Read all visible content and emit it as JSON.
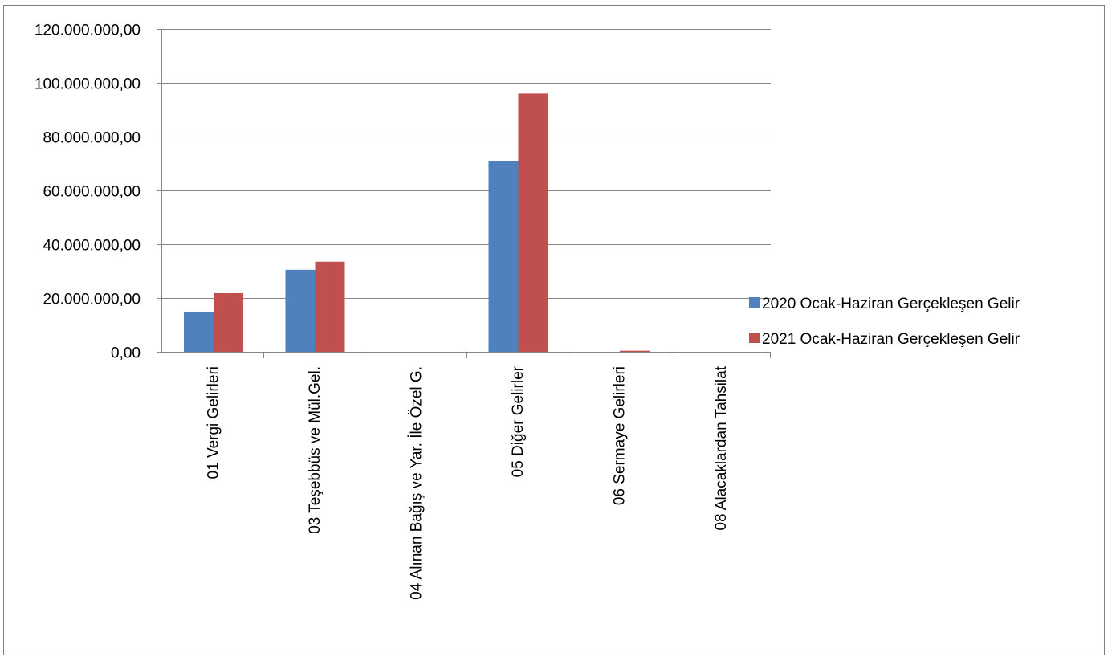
{
  "chart_data": {
    "type": "bar",
    "categories": [
      "01 Vergi Gelirleri",
      "03 Teşebbüs ve Mül.Gel.",
      "04 Alınan Bağış ve Yar. İle Özel G.",
      "05 Diğer Gelirler",
      "06 Sermaye Gelirleri",
      "08 Alacaklardan Tahsilat"
    ],
    "series": [
      {
        "name": "2020  Ocak-Haziran Gerçekleşen Gelir",
        "color": "#4f81bd",
        "values": [
          14800000,
          30500000,
          0,
          71000000,
          0,
          0
        ]
      },
      {
        "name": "2021  Ocak-Haziran Gerçekleşen Gelir",
        "color": "#c0504d",
        "values": [
          21800000,
          33500000,
          0,
          96000000,
          400000,
          0
        ]
      }
    ],
    "yticks": [
      "0,00",
      "20.000.000,00",
      "40.000.000,00",
      "60.000.000,00",
      "80.000.000,00",
      "100.000.000,00",
      "120.000.000,00"
    ],
    "ylim": [
      0,
      120000000
    ],
    "grid": true,
    "legend": "right"
  }
}
